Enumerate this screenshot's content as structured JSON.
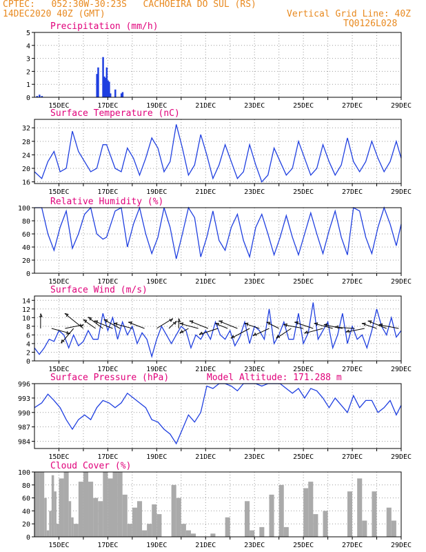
{
  "header": {
    "line1": "CPTEC:   052:30W-30:23S   CACHOEIRA DO SUL (RS)",
    "line2": "14DEC2020 40Z (GMT)",
    "grid_note": "Vertical Grid Line: 40Z",
    "code": "TQ0126L028"
  },
  "colors": {
    "header": "#e8891f",
    "title": "#e0007a",
    "line": "#1f3fe0",
    "cloud": "#aaaaaa",
    "arrow": "#000000"
  },
  "chart_data": [
    {
      "type": "bar",
      "title": "Precipitation (mm/h)",
      "ylim": [
        0,
        5
      ],
      "yticks": [
        0,
        1,
        2,
        3,
        4,
        5
      ],
      "xticks": [
        "15DEC",
        "17DEC",
        "19DEC",
        "21DEC",
        "23DEC",
        "25DEC",
        "27DEC",
        "29DEC"
      ],
      "x_days_range": [
        14.0,
        29.0
      ],
      "x": [
        14.1,
        14.2,
        14.3,
        16.55,
        16.6,
        16.8,
        16.85,
        16.9,
        16.95,
        17.0,
        17.05,
        17.1,
        17.3,
        17.55,
        17.6
      ],
      "values": [
        0.1,
        0.2,
        0.1,
        1.8,
        2.3,
        3.1,
        1.6,
        1.5,
        2.3,
        1.3,
        1.2,
        0.3,
        0.6,
        0.3,
        0.4
      ]
    },
    {
      "type": "line",
      "title": "Surface Temperature (nC)",
      "ylim": [
        15.5,
        34.5
      ],
      "yticks": [
        16,
        20,
        24,
        28,
        32
      ],
      "xticks": [
        "15DEC",
        "17DEC",
        "19DEC",
        "21DEC",
        "23DEC",
        "25DEC",
        "27DEC",
        "29DEC"
      ],
      "x": [
        14.0,
        14.3,
        14.55,
        14.8,
        15.05,
        15.3,
        15.55,
        15.8,
        16.05,
        16.3,
        16.55,
        16.8,
        16.95,
        17.3,
        17.55,
        17.8,
        18.05,
        18.3,
        18.55,
        18.8,
        19.05,
        19.3,
        19.55,
        19.8,
        20.05,
        20.3,
        20.55,
        20.8,
        21.05,
        21.3,
        21.55,
        21.8,
        22.05,
        22.3,
        22.55,
        22.8,
        23.05,
        23.3,
        23.55,
        23.8,
        24.05,
        24.3,
        24.55,
        24.8,
        25.05,
        25.3,
        25.55,
        25.8,
        26.05,
        26.3,
        26.55,
        26.8,
        27.05,
        27.3,
        27.55,
        27.8,
        28.05,
        28.3,
        28.55,
        28.8,
        29.0
      ],
      "y": [
        19,
        17,
        22,
        25,
        19,
        20,
        31,
        25,
        22,
        19,
        20,
        27,
        27,
        20,
        19,
        26,
        23,
        18,
        23,
        29,
        26,
        19,
        22,
        33,
        26,
        18,
        21,
        30,
        24,
        17,
        21,
        27,
        22,
        17,
        19,
        27,
        21,
        16,
        18,
        26,
        22,
        18,
        20,
        28,
        23,
        18,
        20,
        27,
        22,
        18,
        21,
        29,
        22,
        19,
        22,
        28,
        23,
        19,
        22,
        28,
        23
      ]
    },
    {
      "type": "line",
      "title": "Relative Humidity (%)",
      "ylim": [
        0,
        100
      ],
      "yticks": [
        0,
        20,
        40,
        60,
        80,
        100
      ],
      "xticks": [
        "15DEC",
        "17DEC",
        "19DEC",
        "21DEC",
        "23DEC",
        "25DEC",
        "27DEC",
        "29DEC"
      ],
      "x": [
        14.0,
        14.3,
        14.55,
        14.8,
        15.05,
        15.3,
        15.55,
        15.8,
        16.05,
        16.3,
        16.55,
        16.8,
        16.95,
        17.3,
        17.55,
        17.8,
        18.05,
        18.3,
        18.55,
        18.8,
        19.05,
        19.3,
        19.55,
        19.8,
        20.05,
        20.3,
        20.55,
        20.8,
        21.05,
        21.3,
        21.55,
        21.8,
        22.05,
        22.3,
        22.55,
        22.8,
        23.05,
        23.3,
        23.55,
        23.8,
        24.05,
        24.3,
        24.55,
        24.8,
        25.05,
        25.3,
        25.55,
        25.8,
        26.05,
        26.3,
        26.55,
        26.8,
        27.05,
        27.3,
        27.55,
        27.8,
        28.05,
        28.3,
        28.55,
        28.8,
        29.0
      ],
      "y": [
        100,
        100,
        60,
        35,
        70,
        95,
        38,
        60,
        90,
        100,
        60,
        52,
        55,
        95,
        100,
        40,
        75,
        100,
        60,
        30,
        55,
        100,
        70,
        22,
        60,
        100,
        85,
        25,
        55,
        95,
        50,
        35,
        70,
        90,
        50,
        25,
        70,
        90,
        60,
        28,
        55,
        88,
        55,
        28,
        60,
        92,
        60,
        30,
        65,
        95,
        55,
        28,
        100,
        95,
        55,
        30,
        70,
        100,
        75,
        42,
        75
      ]
    },
    {
      "type": "line",
      "title": "Surface Wind (m/s)",
      "ylim": [
        0,
        15
      ],
      "yticks": [
        0,
        2,
        4,
        6,
        8,
        10,
        12,
        14
      ],
      "xticks": [
        "15DEC",
        "17DEC",
        "19DEC",
        "21DEC",
        "23DEC",
        "25DEC",
        "27DEC",
        "29DEC"
      ],
      "x": [
        14.0,
        14.2,
        14.4,
        14.6,
        14.8,
        15.0,
        15.2,
        15.4,
        15.6,
        15.8,
        16.0,
        16.2,
        16.4,
        16.6,
        16.8,
        17.0,
        17.2,
        17.4,
        17.6,
        17.8,
        18.0,
        18.2,
        18.4,
        18.6,
        18.8,
        19.0,
        19.2,
        19.4,
        19.6,
        19.8,
        20.0,
        20.2,
        20.4,
        20.6,
        20.8,
        21.0,
        21.2,
        21.4,
        21.6,
        21.8,
        22.0,
        22.2,
        22.4,
        22.6,
        22.8,
        23.0,
        23.2,
        23.4,
        23.6,
        23.8,
        24.0,
        24.2,
        24.4,
        24.6,
        24.8,
        25.0,
        25.2,
        25.4,
        25.6,
        25.8,
        26.0,
        26.2,
        26.4,
        26.6,
        26.8,
        27.0,
        27.2,
        27.4,
        27.6,
        27.8,
        28.0,
        28.2,
        28.4,
        28.6,
        28.8,
        29.0
      ],
      "y": [
        3,
        1.5,
        3,
        5,
        4.5,
        7,
        6,
        3,
        6,
        3.5,
        4.5,
        7,
        5,
        5,
        11,
        7,
        10,
        5,
        9,
        6,
        8,
        4,
        6.5,
        5,
        1,
        5,
        8,
        6,
        4,
        6,
        8,
        7,
        3,
        6,
        5,
        7,
        5,
        9,
        6,
        5,
        7,
        3.5,
        5.5,
        9,
        4,
        8,
        7,
        5,
        12,
        4,
        6,
        9,
        5,
        5,
        11,
        4,
        6.5,
        13.5,
        5,
        7,
        9,
        3,
        6,
        11,
        4,
        8,
        5,
        6,
        3,
        7,
        12,
        8,
        6,
        10,
        5.5,
        7
      ]
    },
    {
      "type": "line",
      "title": "Surface Pressure (hPa)",
      "annotation": "Model Altitude: 171.288 m",
      "ylim": [
        982.5,
        996
      ],
      "yticks": [
        984,
        987,
        990,
        993,
        996
      ],
      "xticks": [
        "15DEC",
        "17DEC",
        "19DEC",
        "21DEC",
        "23DEC",
        "25DEC",
        "27DEC",
        "29DEC"
      ],
      "x": [
        14.0,
        14.3,
        14.55,
        14.8,
        15.05,
        15.3,
        15.55,
        15.8,
        16.05,
        16.3,
        16.55,
        16.8,
        17.05,
        17.3,
        17.55,
        17.8,
        18.05,
        18.3,
        18.55,
        18.8,
        19.05,
        19.3,
        19.55,
        19.8,
        20.05,
        20.3,
        20.55,
        20.8,
        21.05,
        21.3,
        21.55,
        21.8,
        22.05,
        22.3,
        22.55,
        22.8,
        23.05,
        23.3,
        23.55,
        23.8,
        24.05,
        24.3,
        24.55,
        24.8,
        25.05,
        25.3,
        25.55,
        25.8,
        26.05,
        26.3,
        26.55,
        26.8,
        27.05,
        27.3,
        27.55,
        27.8,
        28.05,
        28.3,
        28.55,
        28.8,
        29.0
      ],
      "y": [
        991,
        992,
        993.8,
        992.5,
        991,
        988.5,
        986.5,
        988.5,
        989.5,
        988.5,
        991,
        992.5,
        992,
        991,
        992,
        994,
        993,
        992,
        991,
        988.5,
        988,
        986.5,
        985.5,
        983.5,
        986.5,
        989.5,
        988,
        990,
        995.5,
        995,
        996,
        996,
        995.5,
        994.5,
        996,
        996,
        996,
        995.5,
        996,
        996,
        996,
        995,
        994,
        995,
        993,
        995,
        994.5,
        993,
        991,
        993,
        991.5,
        990,
        993.5,
        991,
        992.5,
        992.5,
        990,
        991,
        992.5,
        989.5,
        991.5
      ]
    },
    {
      "type": "area",
      "title": "Cloud Cover (%)",
      "ylim": [
        0,
        100
      ],
      "yticks": [
        0,
        20,
        40,
        60,
        80,
        100
      ],
      "xticks": [
        "15DEC",
        "17DEC",
        "19DEC",
        "21DEC",
        "23DEC",
        "25DEC",
        "27DEC",
        "29DEC"
      ],
      "x": [
        14.0,
        14.2,
        14.4,
        14.5,
        14.6,
        14.7,
        14.8,
        14.9,
        15.0,
        15.2,
        15.4,
        15.5,
        15.6,
        15.8,
        16.0,
        16.2,
        16.4,
        16.6,
        16.8,
        17.0,
        17.2,
        17.4,
        17.6,
        17.8,
        18.0,
        18.2,
        18.4,
        18.6,
        18.8,
        19.0,
        19.2,
        19.4,
        19.6,
        19.8,
        20.0,
        20.2,
        20.4,
        20.6,
        20.8,
        21.0,
        21.2,
        21.4,
        21.6,
        21.8,
        22.0,
        22.2,
        22.4,
        22.6,
        22.8,
        23.0,
        23.2,
        23.4,
        23.6,
        23.8,
        24.0,
        24.2,
        24.4,
        24.6,
        24.8,
        25.0,
        25.2,
        25.4,
        25.6,
        25.8,
        26.0,
        26.2,
        26.4,
        26.6,
        26.8,
        27.0,
        27.2,
        27.4,
        27.6,
        27.8,
        28.0,
        28.2,
        28.4,
        28.6,
        28.8,
        29.0
      ],
      "values": [
        100,
        100,
        60,
        10,
        40,
        95,
        70,
        20,
        90,
        100,
        55,
        30,
        20,
        85,
        100,
        85,
        60,
        55,
        100,
        90,
        100,
        100,
        65,
        20,
        45,
        55,
        10,
        20,
        50,
        35,
        0,
        0,
        80,
        60,
        20,
        10,
        5,
        0,
        0,
        0,
        5,
        0,
        0,
        30,
        0,
        0,
        0,
        55,
        10,
        0,
        15,
        0,
        65,
        0,
        80,
        15,
        0,
        0,
        0,
        75,
        85,
        35,
        0,
        40,
        0,
        0,
        0,
        0,
        70,
        0,
        90,
        25,
        0,
        70,
        0,
        0,
        45,
        25,
        0,
        0
      ]
    }
  ],
  "wind_arrows": {
    "x": [
      14.25,
      14.7,
      15.25,
      15.6,
      16.0,
      16.5,
      16.8,
      17.2,
      17.5,
      18.0,
      18.5,
      19.0,
      19.5,
      19.9,
      20.3,
      20.7,
      21.1,
      21.5,
      21.9,
      22.3,
      22.8,
      23.2,
      23.6,
      24.0,
      24.5,
      25.0,
      25.4,
      25.8,
      26.2,
      26.6,
      27.1,
      27.5,
      28.0,
      28.4,
      28.9
    ],
    "u": [
      0,
      1.5,
      1.5,
      -1,
      -1.5,
      -1,
      -1.2,
      -1.5,
      -1.3,
      -1.5,
      -1.3,
      1.3,
      0.6,
      0,
      -0.7,
      -1.5,
      -1.5,
      -1.5,
      -1,
      -1.5,
      -1.5,
      -1.2,
      -1.3,
      -1,
      -1.2,
      -1.6,
      -1.5,
      -1.5,
      -1.5,
      -1.5,
      -1.6,
      -1.5,
      -1.2,
      -1.5,
      -1.6
    ],
    "v": [
      1.2,
      -0.4,
      0.3,
      -1.2,
      1.2,
      0.7,
      0.9,
      0.6,
      0.7,
      0.4,
      0.5,
      0.8,
      0.6,
      0.8,
      -0.4,
      0.4,
      0.6,
      -0.5,
      0.4,
      0.6,
      -0.8,
      0.4,
      -0.6,
      0.5,
      -0.8,
      0.3,
      0.5,
      -0.4,
      0.4,
      0.3,
      0.1,
      -0.3,
      0.4,
      0.6,
      0.3
    ]
  }
}
